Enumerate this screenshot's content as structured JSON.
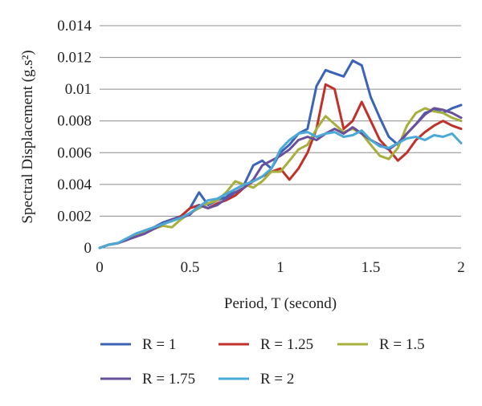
{
  "chart_data": {
    "type": "line",
    "title": "",
    "xlabel": "Period, T (second)",
    "ylabel": "Spectral Displacement (g.s²)",
    "xlim": [
      0,
      2
    ],
    "ylim": [
      0,
      0.014
    ],
    "x_ticks": [
      "0",
      "0.5",
      "1",
      "1.5",
      "2"
    ],
    "y_ticks": [
      "0",
      "0.002",
      "0.004",
      "0.006",
      "0.008",
      "0.01",
      "0.012",
      "0.014"
    ],
    "grid": "horizontal",
    "legend_position": "bottom",
    "series": [
      {
        "name": "R = 1",
        "color": "#3b63b8",
        "points": [
          [
            0,
            0
          ],
          [
            0.05,
            0.0002
          ],
          [
            0.1,
            0.0003
          ],
          [
            0.15,
            0.0005
          ],
          [
            0.2,
            0.0008
          ],
          [
            0.25,
            0.001
          ],
          [
            0.3,
            0.0013
          ],
          [
            0.35,
            0.0016
          ],
          [
            0.4,
            0.0018
          ],
          [
            0.45,
            0.002
          ],
          [
            0.5,
            0.0025
          ],
          [
            0.55,
            0.0035
          ],
          [
            0.6,
            0.0027
          ],
          [
            0.65,
            0.003
          ],
          [
            0.7,
            0.0032
          ],
          [
            0.75,
            0.0037
          ],
          [
            0.8,
            0.004
          ],
          [
            0.85,
            0.0052
          ],
          [
            0.9,
            0.0055
          ],
          [
            0.95,
            0.005
          ],
          [
            1.0,
            0.006
          ],
          [
            1.05,
            0.0065
          ],
          [
            1.1,
            0.0072
          ],
          [
            1.15,
            0.0075
          ],
          [
            1.2,
            0.0102
          ],
          [
            1.25,
            0.0112
          ],
          [
            1.3,
            0.011
          ],
          [
            1.35,
            0.0108
          ],
          [
            1.4,
            0.0118
          ],
          [
            1.45,
            0.0115
          ],
          [
            1.5,
            0.0095
          ],
          [
            1.55,
            0.0082
          ],
          [
            1.6,
            0.007
          ],
          [
            1.65,
            0.0065
          ],
          [
            1.7,
            0.0072
          ],
          [
            1.75,
            0.0078
          ],
          [
            1.8,
            0.0085
          ],
          [
            1.85,
            0.0087
          ],
          [
            1.9,
            0.0085
          ],
          [
            1.95,
            0.0088
          ],
          [
            2.0,
            0.009
          ]
        ]
      },
      {
        "name": "R = 1.25",
        "color": "#c0312b",
        "points": [
          [
            0,
            0
          ],
          [
            0.05,
            0.0002
          ],
          [
            0.1,
            0.0003
          ],
          [
            0.15,
            0.0005
          ],
          [
            0.2,
            0.0008
          ],
          [
            0.25,
            0.001
          ],
          [
            0.3,
            0.0013
          ],
          [
            0.35,
            0.0015
          ],
          [
            0.4,
            0.0017
          ],
          [
            0.45,
            0.002
          ],
          [
            0.5,
            0.0025
          ],
          [
            0.55,
            0.0027
          ],
          [
            0.6,
            0.0025
          ],
          [
            0.65,
            0.0028
          ],
          [
            0.7,
            0.003
          ],
          [
            0.75,
            0.0033
          ],
          [
            0.8,
            0.0038
          ],
          [
            0.85,
            0.0042
          ],
          [
            0.9,
            0.0045
          ],
          [
            0.95,
            0.0048
          ],
          [
            1.0,
            0.005
          ],
          [
            1.05,
            0.0043
          ],
          [
            1.1,
            0.005
          ],
          [
            1.15,
            0.006
          ],
          [
            1.2,
            0.0075
          ],
          [
            1.25,
            0.0103
          ],
          [
            1.3,
            0.01
          ],
          [
            1.35,
            0.0075
          ],
          [
            1.4,
            0.008
          ],
          [
            1.45,
            0.0092
          ],
          [
            1.5,
            0.008
          ],
          [
            1.55,
            0.0068
          ],
          [
            1.6,
            0.0062
          ],
          [
            1.65,
            0.0055
          ],
          [
            1.7,
            0.006
          ],
          [
            1.75,
            0.0068
          ],
          [
            1.8,
            0.0073
          ],
          [
            1.85,
            0.0077
          ],
          [
            1.9,
            0.008
          ],
          [
            1.95,
            0.0077
          ],
          [
            2.0,
            0.0075
          ]
        ]
      },
      {
        "name": "R = 1.5",
        "color": "#a7b03c",
        "points": [
          [
            0,
            0
          ],
          [
            0.05,
            0.0002
          ],
          [
            0.1,
            0.0003
          ],
          [
            0.15,
            0.0005
          ],
          [
            0.2,
            0.0008
          ],
          [
            0.25,
            0.001
          ],
          [
            0.3,
            0.0012
          ],
          [
            0.35,
            0.0014
          ],
          [
            0.4,
            0.0013
          ],
          [
            0.45,
            0.0018
          ],
          [
            0.5,
            0.0022
          ],
          [
            0.55,
            0.0025
          ],
          [
            0.6,
            0.0028
          ],
          [
            0.65,
            0.003
          ],
          [
            0.7,
            0.0035
          ],
          [
            0.75,
            0.0042
          ],
          [
            0.8,
            0.004
          ],
          [
            0.85,
            0.0038
          ],
          [
            0.9,
            0.0042
          ],
          [
            0.95,
            0.0048
          ],
          [
            1.0,
            0.0048
          ],
          [
            1.05,
            0.0055
          ],
          [
            1.1,
            0.0062
          ],
          [
            1.15,
            0.0065
          ],
          [
            1.2,
            0.0075
          ],
          [
            1.25,
            0.0083
          ],
          [
            1.3,
            0.0078
          ],
          [
            1.35,
            0.0073
          ],
          [
            1.4,
            0.0075
          ],
          [
            1.45,
            0.0072
          ],
          [
            1.5,
            0.0065
          ],
          [
            1.55,
            0.0058
          ],
          [
            1.6,
            0.0056
          ],
          [
            1.65,
            0.0063
          ],
          [
            1.7,
            0.0077
          ],
          [
            1.75,
            0.0085
          ],
          [
            1.8,
            0.0088
          ],
          [
            1.85,
            0.0086
          ],
          [
            1.9,
            0.0085
          ],
          [
            1.95,
            0.0082
          ],
          [
            2.0,
            0.008
          ]
        ]
      },
      {
        "name": "R = 1.75",
        "color": "#6a4f9a",
        "points": [
          [
            0,
            0
          ],
          [
            0.05,
            0.0002
          ],
          [
            0.1,
            0.0003
          ],
          [
            0.15,
            0.0005
          ],
          [
            0.2,
            0.0007
          ],
          [
            0.25,
            0.0009
          ],
          [
            0.3,
            0.0012
          ],
          [
            0.35,
            0.0015
          ],
          [
            0.4,
            0.0018
          ],
          [
            0.45,
            0.0019
          ],
          [
            0.5,
            0.0021
          ],
          [
            0.55,
            0.0027
          ],
          [
            0.6,
            0.0025
          ],
          [
            0.65,
            0.0027
          ],
          [
            0.7,
            0.0031
          ],
          [
            0.75,
            0.0035
          ],
          [
            0.8,
            0.0038
          ],
          [
            0.85,
            0.0043
          ],
          [
            0.9,
            0.0052
          ],
          [
            0.95,
            0.0055
          ],
          [
            1.0,
            0.0058
          ],
          [
            1.05,
            0.0062
          ],
          [
            1.1,
            0.0068
          ],
          [
            1.15,
            0.007
          ],
          [
            1.2,
            0.0068
          ],
          [
            1.25,
            0.0072
          ],
          [
            1.3,
            0.0075
          ],
          [
            1.35,
            0.0072
          ],
          [
            1.4,
            0.0076
          ],
          [
            1.45,
            0.0072
          ],
          [
            1.5,
            0.0068
          ],
          [
            1.55,
            0.0065
          ],
          [
            1.6,
            0.0062
          ],
          [
            1.65,
            0.0066
          ],
          [
            1.7,
            0.0072
          ],
          [
            1.75,
            0.0078
          ],
          [
            1.8,
            0.0084
          ],
          [
            1.85,
            0.0088
          ],
          [
            1.9,
            0.0087
          ],
          [
            1.95,
            0.0085
          ],
          [
            2.0,
            0.0082
          ]
        ]
      },
      {
        "name": "R = 2",
        "color": "#4aa9d6",
        "points": [
          [
            0,
            0
          ],
          [
            0.05,
            0.0002
          ],
          [
            0.1,
            0.0003
          ],
          [
            0.15,
            0.0006
          ],
          [
            0.2,
            0.0009
          ],
          [
            0.25,
            0.0011
          ],
          [
            0.3,
            0.0013
          ],
          [
            0.35,
            0.0015
          ],
          [
            0.4,
            0.0017
          ],
          [
            0.45,
            0.0019
          ],
          [
            0.5,
            0.0022
          ],
          [
            0.55,
            0.0026
          ],
          [
            0.6,
            0.003
          ],
          [
            0.65,
            0.0031
          ],
          [
            0.7,
            0.0034
          ],
          [
            0.75,
            0.0037
          ],
          [
            0.8,
            0.004
          ],
          [
            0.85,
            0.0042
          ],
          [
            0.9,
            0.0045
          ],
          [
            0.95,
            0.005
          ],
          [
            1.0,
            0.0062
          ],
          [
            1.05,
            0.0068
          ],
          [
            1.1,
            0.0072
          ],
          [
            1.15,
            0.0073
          ],
          [
            1.2,
            0.007
          ],
          [
            1.25,
            0.0072
          ],
          [
            1.3,
            0.0073
          ],
          [
            1.35,
            0.007
          ],
          [
            1.4,
            0.0071
          ],
          [
            1.45,
            0.0074
          ],
          [
            1.5,
            0.0068
          ],
          [
            1.55,
            0.0064
          ],
          [
            1.6,
            0.0063
          ],
          [
            1.65,
            0.0066
          ],
          [
            1.7,
            0.0069
          ],
          [
            1.75,
            0.007
          ],
          [
            1.8,
            0.0068
          ],
          [
            1.85,
            0.0071
          ],
          [
            1.9,
            0.007
          ],
          [
            1.95,
            0.0072
          ],
          [
            2.0,
            0.0066
          ]
        ]
      }
    ]
  }
}
